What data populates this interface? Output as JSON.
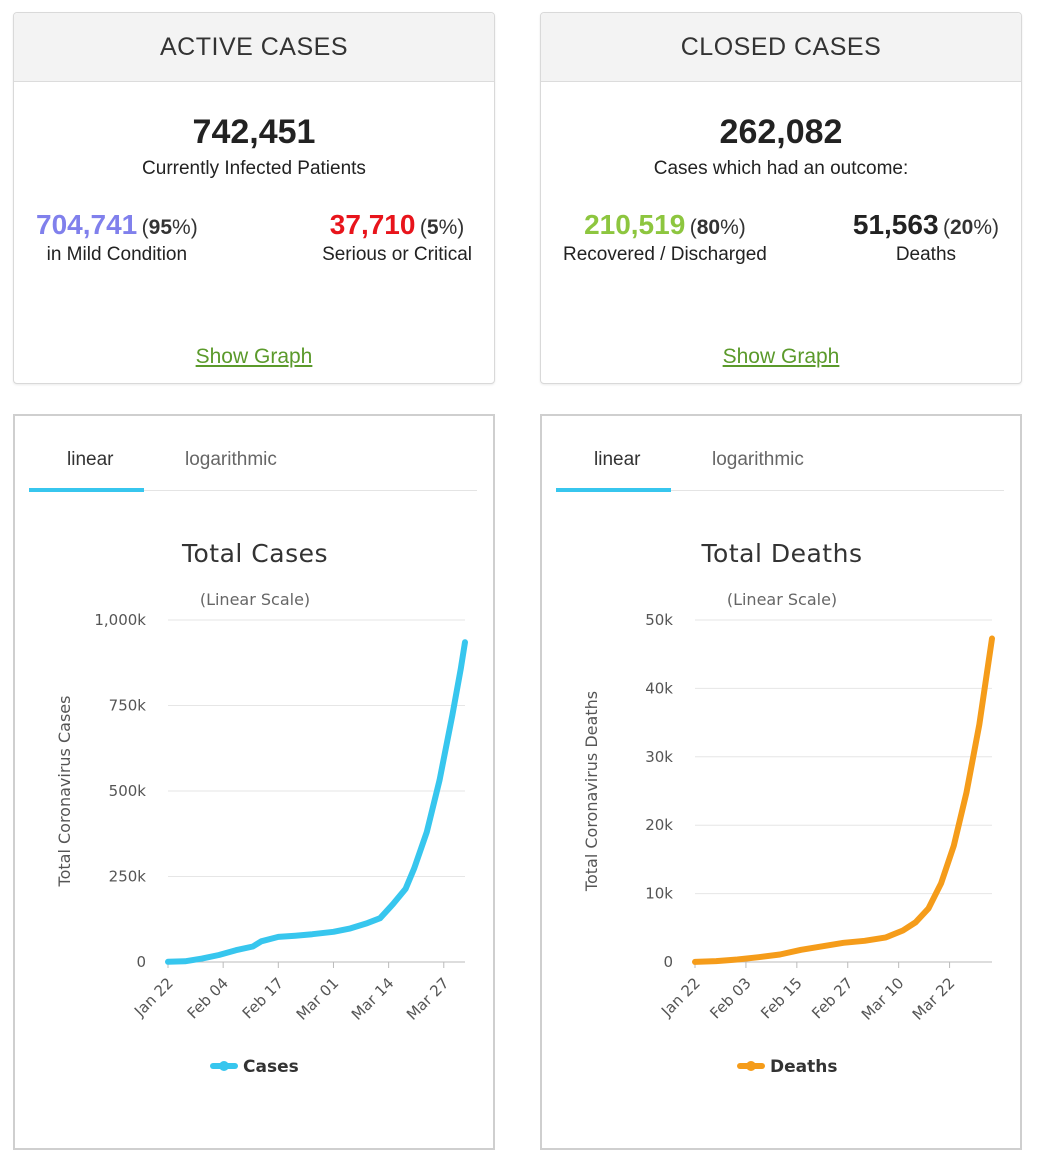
{
  "active": {
    "title": "ACTIVE CASES",
    "total": "742,451",
    "total_label": "Currently Infected Patients",
    "mild": {
      "value": "704,741",
      "pct_open": "(",
      "pct": "95",
      "pct_close": "%)",
      "label": "in Mild Condition",
      "color": "#8080ec"
    },
    "critical": {
      "value": "37,710",
      "pct_open": "(",
      "pct": "5",
      "pct_close": "%)",
      "label": "Serious or Critical",
      "color": "#e8141b"
    },
    "link": "Show Graph"
  },
  "closed": {
    "title": "CLOSED CASES",
    "total": "262,082",
    "total_label": "Cases which had an outcome:",
    "recovered": {
      "value": "210,519",
      "pct_open": "(",
      "pct": "80",
      "pct_close": "%)",
      "label": "Recovered / Discharged",
      "color": "#8dc63f"
    },
    "deaths": {
      "value": "51,563",
      "pct_open": "(",
      "pct": "20",
      "pct_close": "%)",
      "label": "Deaths",
      "color": "#222222"
    },
    "link": "Show Graph"
  },
  "cases_chart": {
    "tabs": [
      "linear",
      "logarithmic"
    ],
    "active_tab": "linear",
    "accent": "#37c6ee",
    "chart_data": {
      "type": "line",
      "title": "Total Cases",
      "subtitle": "(Linear Scale)",
      "ylabel": "Total Coronavirus Cases",
      "xlabel": "",
      "ylim": [
        0,
        1000000
      ],
      "yticks": [
        0,
        250000,
        500000,
        750000,
        1000000
      ],
      "ytick_labels": [
        "0",
        "250k",
        "500k",
        "750k",
        "1,000k"
      ],
      "xtick_labels": [
        "Jan 22",
        "Feb 04",
        "Feb 17",
        "Mar 01",
        "Mar 14",
        "Mar 27"
      ],
      "legend": "bottom-center",
      "grid": true,
      "series": [
        {
          "name": "Cases",
          "color": "#37c6ee",
          "x": [
            "Jan 22",
            "Jan 26",
            "Jan 30",
            "Feb 03",
            "Feb 07",
            "Feb 11",
            "Feb 13",
            "Feb 17",
            "Feb 21",
            "Feb 25",
            "Mar 01",
            "Mar 05",
            "Mar 09",
            "Mar 12",
            "Mar 15",
            "Mar 18",
            "Mar 20",
            "Mar 23",
            "Mar 26",
            "Mar 29",
            "Mar 31",
            "Apr 01"
          ],
          "values": [
            600,
            2100,
            9800,
            20600,
            34400,
            45200,
            60400,
            73300,
            76800,
            81400,
            88400,
            98300,
            113600,
            128000,
            169000,
            214000,
            273000,
            380000,
            531000,
            721000,
            858000,
            935000
          ]
        }
      ]
    }
  },
  "deaths_chart": {
    "tabs": [
      "linear",
      "logarithmic"
    ],
    "active_tab": "linear",
    "accent": "#37c6ee",
    "chart_data": {
      "type": "line",
      "title": "Total Deaths",
      "subtitle": "(Linear Scale)",
      "ylabel": "Total Coronavirus Deaths",
      "xlabel": "",
      "ylim": [
        0,
        50000
      ],
      "yticks": [
        0,
        10000,
        20000,
        30000,
        40000,
        50000
      ],
      "ytick_labels": [
        "0",
        "10k",
        "20k",
        "30k",
        "40k",
        "50k"
      ],
      "xtick_labels": [
        "Jan 22",
        "Feb 03",
        "Feb 15",
        "Feb 27",
        "Mar 10",
        "Mar 22"
      ],
      "legend": "bottom-center",
      "grid": true,
      "series": [
        {
          "name": "Deaths",
          "color": "#f59c1a",
          "x": [
            "Jan 22",
            "Jan 27",
            "Feb 01",
            "Feb 06",
            "Feb 11",
            "Feb 16",
            "Feb 21",
            "Feb 26",
            "Mar 02",
            "Mar 07",
            "Mar 11",
            "Mar 14",
            "Mar 17",
            "Mar 20",
            "Mar 23",
            "Mar 26",
            "Mar 29",
            "Apr 01"
          ],
          "values": [
            20,
            130,
            360,
            700,
            1100,
            1780,
            2300,
            2800,
            3100,
            3600,
            4600,
            5800,
            7800,
            11500,
            17000,
            24800,
            34700,
            47300
          ]
        }
      ]
    }
  }
}
